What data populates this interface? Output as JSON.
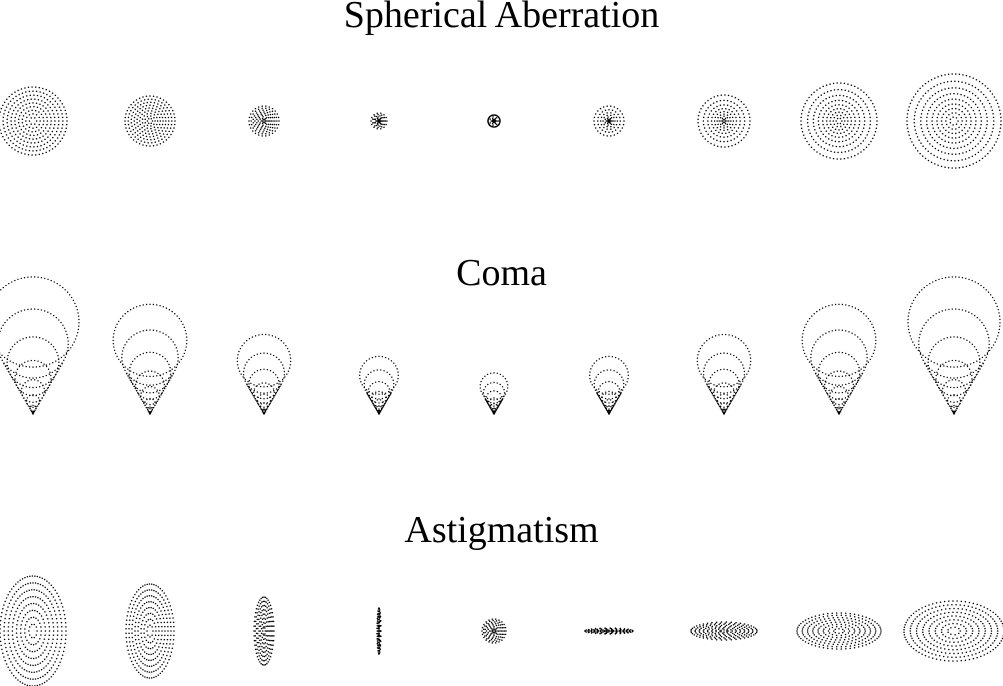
{
  "sections": {
    "spherical": {
      "title": "Spherical Aberration"
    },
    "coma": {
      "title": "Coma"
    },
    "astigmatism": {
      "title": "Astigmatism"
    }
  },
  "dot_color": "#000000"
}
